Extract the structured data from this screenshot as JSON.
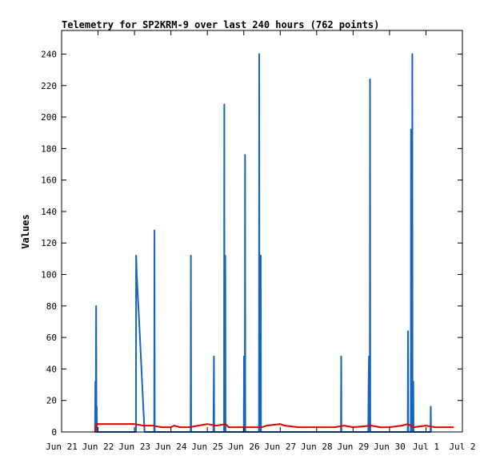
{
  "chart_data": {
    "type": "line",
    "title": "Telemetry for SP2KRM-9 over last 240 hours (762 points)",
    "xlabel": "",
    "ylabel": "Values",
    "xlim": [
      "2021-06-21",
      "2021-07-02"
    ],
    "ylim": [
      0,
      255
    ],
    "x_ticks": [
      "Jun 21",
      "Jun 22",
      "Jun 23",
      "Jun 24",
      "Jun 25",
      "Jun 26",
      "Jun 27",
      "Jun 28",
      "Jun 29",
      "Jun 30",
      "Jul 1",
      "Jul 2"
    ],
    "y_ticks": [
      0,
      20,
      40,
      60,
      80,
      100,
      120,
      140,
      160,
      180,
      200,
      220,
      240
    ],
    "grid": false,
    "legend": "none",
    "colors": {
      "blue_series": "#1565c0",
      "red_series": "#e00000",
      "frame": "#000000"
    },
    "series": [
      {
        "color": "#1565c0",
        "points": [
          [
            "2021-06-21T22:00",
            0
          ],
          [
            "2021-06-21T22:15",
            32
          ],
          [
            "2021-06-21T22:30",
            0
          ],
          [
            "2021-06-21T22:45",
            80
          ],
          [
            "2021-06-21T23:00",
            0
          ],
          [
            "2021-06-21T23:10",
            16
          ],
          [
            "2021-06-21T23:20",
            0
          ],
          [
            "2021-06-23T01:00",
            0
          ],
          [
            "2021-06-23T01:05",
            112
          ],
          [
            "2021-06-23T01:15",
            108
          ],
          [
            "2021-06-23T01:25",
            102
          ],
          [
            "2021-06-23T02:00",
            90
          ],
          [
            "2021-06-23T03:00",
            72
          ],
          [
            "2021-06-23T04:00",
            52
          ],
          [
            "2021-06-23T05:00",
            32
          ],
          [
            "2021-06-23T06:00",
            12
          ],
          [
            "2021-06-23T06:40",
            0
          ],
          [
            "2021-06-23T13:00",
            0
          ],
          [
            "2021-06-23T13:10",
            128
          ],
          [
            "2021-06-23T13:20",
            0
          ],
          [
            "2021-06-24T13:00",
            0
          ],
          [
            "2021-06-24T13:10",
            112
          ],
          [
            "2021-06-24T13:20",
            0
          ],
          [
            "2021-06-25T04:00",
            0
          ],
          [
            "2021-06-25T04:10",
            24
          ],
          [
            "2021-06-25T04:20",
            48
          ],
          [
            "2021-06-25T04:30",
            0
          ],
          [
            "2021-06-25T11:00",
            0
          ],
          [
            "2021-06-25T11:10",
            208
          ],
          [
            "2021-06-25T11:20",
            0
          ],
          [
            "2021-06-25T11:40",
            0
          ],
          [
            "2021-06-25T11:50",
            112
          ],
          [
            "2021-06-25T12:00",
            0
          ],
          [
            "2021-06-26T00:00",
            0
          ],
          [
            "2021-06-26T00:10",
            48
          ],
          [
            "2021-06-26T00:20",
            0
          ],
          [
            "2021-06-26T00:40",
            0
          ],
          [
            "2021-06-26T00:50",
            176
          ],
          [
            "2021-06-26T01:00",
            0
          ],
          [
            "2021-06-26T10:00",
            0
          ],
          [
            "2021-06-26T10:10",
            240
          ],
          [
            "2021-06-26T10:20",
            0
          ],
          [
            "2021-06-26T11:00",
            0
          ],
          [
            "2021-06-26T11:10",
            112
          ],
          [
            "2021-06-26T11:20",
            0
          ],
          [
            "2021-06-28T16:00",
            0
          ],
          [
            "2021-06-28T16:10",
            48
          ],
          [
            "2021-06-28T16:20",
            0
          ],
          [
            "2021-06-29T10:00",
            0
          ],
          [
            "2021-06-29T10:10",
            24
          ],
          [
            "2021-06-29T10:20",
            40
          ],
          [
            "2021-06-29T10:30",
            48
          ],
          [
            "2021-06-29T10:40",
            0
          ],
          [
            "2021-06-29T11:00",
            0
          ],
          [
            "2021-06-29T11:10",
            224
          ],
          [
            "2021-06-29T11:20",
            0
          ],
          [
            "2021-06-30T12:00",
            0
          ],
          [
            "2021-06-30T12:10",
            64
          ],
          [
            "2021-06-30T12:20",
            0
          ],
          [
            "2021-06-30T14:00",
            0
          ],
          [
            "2021-06-30T14:10",
            192
          ],
          [
            "2021-06-30T14:20",
            0
          ],
          [
            "2021-06-30T14:50",
            0
          ],
          [
            "2021-06-30T15:00",
            240
          ],
          [
            "2021-06-30T15:10",
            0
          ],
          [
            "2021-06-30T15:30",
            0
          ],
          [
            "2021-06-30T15:40",
            32
          ],
          [
            "2021-06-30T15:50",
            0
          ],
          [
            "2021-07-01T03:00",
            0
          ],
          [
            "2021-07-01T03:10",
            16
          ],
          [
            "2021-07-01T03:20",
            0
          ]
        ]
      },
      {
        "color": "#e00000",
        "points": [
          [
            "2021-06-21T22:00",
            0
          ],
          [
            "2021-06-21T22:30",
            2
          ],
          [
            "2021-06-21T23:00",
            5
          ],
          [
            "2021-06-22T12:00",
            5
          ],
          [
            "2021-06-23T00:00",
            5
          ],
          [
            "2021-06-23T06:00",
            4
          ],
          [
            "2021-06-23T12:00",
            4
          ],
          [
            "2021-06-23T18:00",
            3
          ],
          [
            "2021-06-24T00:00",
            3
          ],
          [
            "2021-06-24T02:00",
            4
          ],
          [
            "2021-06-24T06:00",
            3
          ],
          [
            "2021-06-24T12:00",
            3
          ],
          [
            "2021-06-24T18:00",
            4
          ],
          [
            "2021-06-25T00:00",
            5
          ],
          [
            "2021-06-25T06:00",
            4
          ],
          [
            "2021-06-25T12:00",
            5
          ],
          [
            "2021-06-25T14:00",
            3
          ],
          [
            "2021-06-26T00:00",
            3
          ],
          [
            "2021-06-26T06:00",
            3
          ],
          [
            "2021-06-26T12:00",
            3
          ],
          [
            "2021-06-26T15:00",
            4
          ],
          [
            "2021-06-27T00:00",
            5
          ],
          [
            "2021-06-27T03:00",
            4
          ],
          [
            "2021-06-27T12:00",
            3
          ],
          [
            "2021-06-27T18:00",
            3
          ],
          [
            "2021-06-28T00:00",
            3
          ],
          [
            "2021-06-28T12:00",
            3
          ],
          [
            "2021-06-28T18:00",
            4
          ],
          [
            "2021-06-29T00:00",
            3
          ],
          [
            "2021-06-29T12:00",
            4
          ],
          [
            "2021-06-29T18:00",
            3
          ],
          [
            "2021-06-30T00:00",
            3
          ],
          [
            "2021-06-30T08:00",
            4
          ],
          [
            "2021-06-30T12:00",
            5
          ],
          [
            "2021-06-30T16:00",
            3
          ],
          [
            "2021-07-01T00:00",
            4
          ],
          [
            "2021-07-01T06:00",
            3
          ],
          [
            "2021-07-01T12:00",
            3
          ],
          [
            "2021-07-01T18:00",
            3
          ]
        ]
      }
    ]
  }
}
